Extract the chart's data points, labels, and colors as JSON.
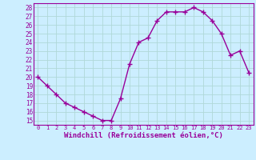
{
  "x": [
    0,
    1,
    2,
    3,
    4,
    5,
    6,
    7,
    8,
    9,
    10,
    11,
    12,
    13,
    14,
    15,
    16,
    17,
    18,
    19,
    20,
    21,
    22,
    23
  ],
  "y": [
    20.0,
    19.0,
    18.0,
    17.0,
    16.5,
    16.0,
    15.5,
    15.0,
    15.0,
    17.5,
    21.5,
    24.0,
    24.5,
    26.5,
    27.5,
    27.5,
    27.5,
    28.0,
    27.5,
    26.5,
    25.0,
    22.5,
    23.0,
    20.5
  ],
  "line_color": "#990099",
  "marker": "+",
  "marker_size": 4,
  "line_width": 1.0,
  "xlabel": "Windchill (Refroidissement éolien,°C)",
  "xlabel_fontsize": 6.5,
  "xlim": [
    -0.5,
    23.5
  ],
  "ylim": [
    14.5,
    28.5
  ],
  "yticks": [
    15,
    16,
    17,
    18,
    19,
    20,
    21,
    22,
    23,
    24,
    25,
    26,
    27,
    28
  ],
  "xticks": [
    0,
    1,
    2,
    3,
    4,
    5,
    6,
    7,
    8,
    9,
    10,
    11,
    12,
    13,
    14,
    15,
    16,
    17,
    18,
    19,
    20,
    21,
    22,
    23
  ],
  "xtick_fontsize": 5.0,
  "ytick_fontsize": 5.5,
  "grid_color": "#b0d8d8",
  "background_color": "#cceeff",
  "xlabel_color": "#990099",
  "tick_color": "#990099",
  "spine_color": "#990099"
}
